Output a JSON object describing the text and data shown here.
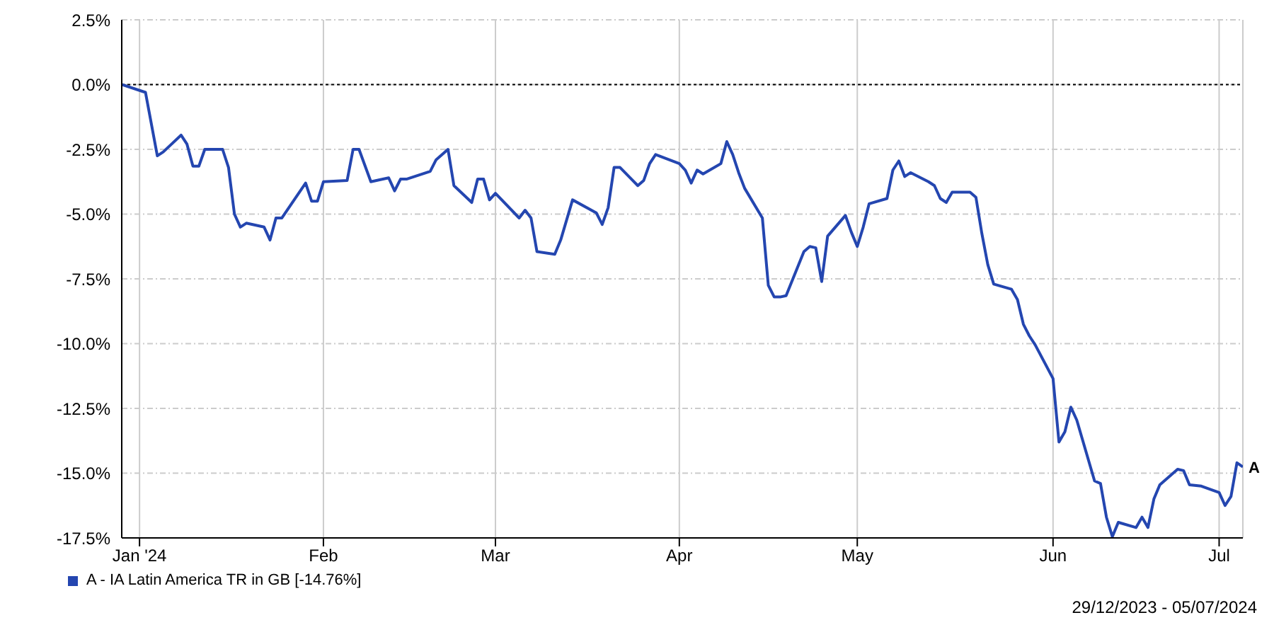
{
  "chart_data": {
    "type": "line",
    "x": [
      "2023-12-29",
      "2024-01-02",
      "2024-01-04",
      "2024-01-05",
      "2024-01-08",
      "2024-01-09",
      "2024-01-10",
      "2024-01-11",
      "2024-01-12",
      "2024-01-15",
      "2024-01-16",
      "2024-01-17",
      "2024-01-18",
      "2024-01-19",
      "2024-01-22",
      "2024-01-23",
      "2024-01-24",
      "2024-01-25",
      "2024-01-29",
      "2024-01-30",
      "2024-01-31",
      "2024-02-01",
      "2024-02-05",
      "2024-02-06",
      "2024-02-07",
      "2024-02-09",
      "2024-02-12",
      "2024-02-13",
      "2024-02-14",
      "2024-02-15",
      "2024-02-19",
      "2024-02-20",
      "2024-02-22",
      "2024-02-23",
      "2024-02-26",
      "2024-02-27",
      "2024-02-28",
      "2024-02-29",
      "2024-03-01",
      "2024-03-05",
      "2024-03-06",
      "2024-03-07",
      "2024-03-08",
      "2024-03-11",
      "2024-03-12",
      "2024-03-14",
      "2024-03-18",
      "2024-03-19",
      "2024-03-20",
      "2024-03-21",
      "2024-03-22",
      "2024-03-25",
      "2024-03-26",
      "2024-03-27",
      "2024-03-28",
      "2024-04-01",
      "2024-04-02",
      "2024-04-03",
      "2024-04-04",
      "2024-04-05",
      "2024-04-08",
      "2024-04-09",
      "2024-04-10",
      "2024-04-11",
      "2024-04-12",
      "2024-04-15",
      "2024-04-16",
      "2024-04-17",
      "2024-04-18",
      "2024-04-19",
      "2024-04-22",
      "2024-04-23",
      "2024-04-24",
      "2024-04-25",
      "2024-04-26",
      "2024-04-29",
      "2024-04-30",
      "2024-05-01",
      "2024-05-02",
      "2024-05-03",
      "2024-05-06",
      "2024-05-07",
      "2024-05-08",
      "2024-05-09",
      "2024-05-10",
      "2024-05-13",
      "2024-05-14",
      "2024-05-15",
      "2024-05-16",
      "2024-05-17",
      "2024-05-20",
      "2024-05-21",
      "2024-05-22",
      "2024-05-23",
      "2024-05-24",
      "2024-05-27",
      "2024-05-28",
      "2024-05-29",
      "2024-05-30",
      "2024-05-31",
      "2024-06-03",
      "2024-06-04",
      "2024-06-05",
      "2024-06-06",
      "2024-06-07",
      "2024-06-10",
      "2024-06-11",
      "2024-06-12",
      "2024-06-13",
      "2024-06-14",
      "2024-06-17",
      "2024-06-18",
      "2024-06-19",
      "2024-06-20",
      "2024-06-21",
      "2024-06-24",
      "2024-06-25",
      "2024-06-26",
      "2024-06-28",
      "2024-07-01",
      "2024-07-02",
      "2024-07-03",
      "2024-07-04",
      "2024-07-05"
    ],
    "series": [
      {
        "name": "A - IA Latin America TR in GB [-14.76%]",
        "color": "#2446b0",
        "values": [
          0,
          -0.3,
          -2.75,
          -2.6,
          -1.95,
          -2.3,
          -3.15,
          -3.15,
          -2.5,
          -2.5,
          -3.2,
          -5.0,
          -5.5,
          -5.35,
          -5.5,
          -6.0,
          -5.15,
          -5.15,
          -3.8,
          -4.5,
          -4.5,
          -3.75,
          -3.7,
          -2.5,
          -2.5,
          -3.75,
          -3.6,
          -4.1,
          -3.65,
          -3.65,
          -3.35,
          -2.9,
          -2.5,
          -3.9,
          -4.55,
          -3.65,
          -3.65,
          -4.45,
          -4.2,
          -5.15,
          -4.85,
          -5.15,
          -6.45,
          -6.55,
          -6.0,
          -4.45,
          -4.95,
          -5.4,
          -4.75,
          -3.2,
          -3.2,
          -3.9,
          -3.7,
          -3.05,
          -2.7,
          -3.05,
          -3.3,
          -3.8,
          -3.3,
          -3.45,
          -3.05,
          -2.2,
          -2.7,
          -3.4,
          -4.0,
          -5.15,
          -7.75,
          -8.2,
          -8.2,
          -8.15,
          -6.45,
          -6.25,
          -6.3,
          -7.6,
          -5.85,
          -5.05,
          -5.7,
          -6.25,
          -5.5,
          -4.6,
          -4.4,
          -3.3,
          -2.95,
          -3.55,
          -3.4,
          -3.75,
          -3.9,
          -4.4,
          -4.55,
          -4.15,
          -4.15,
          -4.35,
          -5.75,
          -6.95,
          -7.7,
          -7.9,
          -8.3,
          -9.25,
          -9.7,
          -10.05,
          -11.35,
          -13.8,
          -13.4,
          -12.45,
          -12.95,
          -15.3,
          -15.4,
          -16.7,
          -17.45,
          -16.9,
          -17.1,
          -16.7,
          -17.1,
          -16.0,
          -15.45,
          -14.85,
          -14.9,
          -15.45,
          -15.5,
          -15.75,
          -16.25,
          -15.9,
          -14.6,
          -14.76
        ]
      }
    ],
    "xlim": [
      "2023-12-29",
      "2024-07-05"
    ],
    "xticks": [
      {
        "value": "2024-01-01",
        "label": "Jan '24"
      },
      {
        "value": "2024-02-01",
        "label": "Feb"
      },
      {
        "value": "2024-03-01",
        "label": "Mar"
      },
      {
        "value": "2024-04-01",
        "label": "Apr"
      },
      {
        "value": "2024-05-01",
        "label": "May"
      },
      {
        "value": "2024-06-03",
        "label": "Jun"
      },
      {
        "value": "2024-07-01",
        "label": "Jul"
      }
    ],
    "ylim": [
      -17.5,
      2.5
    ],
    "yticks": [
      {
        "value": -17.5,
        "label": "-17.5%"
      },
      {
        "value": -15,
        "label": "-15.0%"
      },
      {
        "value": -12.5,
        "label": "-12.5%"
      },
      {
        "value": -10,
        "label": "-10.0%"
      },
      {
        "value": -7.5,
        "label": "-7.5%"
      },
      {
        "value": -5,
        "label": "-5.0%"
      },
      {
        "value": -2.5,
        "label": "-2.5%"
      },
      {
        "value": 0,
        "label": "0.0%"
      },
      {
        "value": 2.5,
        "label": "2.5%"
      }
    ],
    "ref_lines": [
      {
        "axis": "y",
        "value": 0,
        "color": "#000000",
        "line_style": "dotted"
      }
    ],
    "annotations": [
      {
        "text": "A",
        "x": "2024-07-05",
        "y": -14.76
      },
      "29/12/2023 - 05/07/2024"
    ],
    "grid": true,
    "legend": "bottom left",
    "marker": "none",
    "line_style": "solid"
  }
}
